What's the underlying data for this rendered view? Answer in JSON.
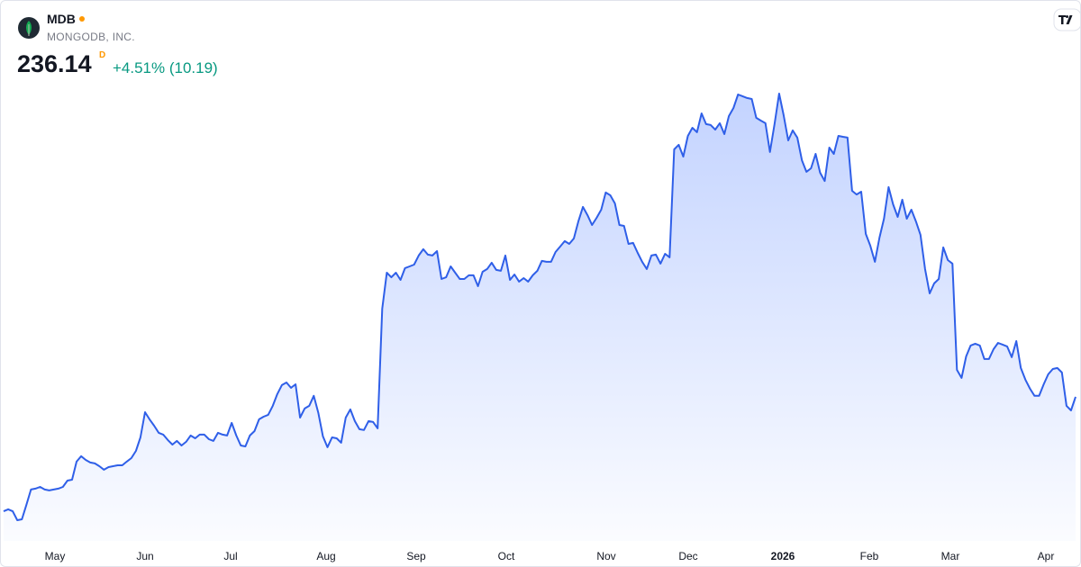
{
  "header": {
    "symbol": "MDB",
    "company": "MONGODB, INC.",
    "price": "236.14",
    "interval": "D",
    "change": "+4.51% (10.19)"
  },
  "chart_data": {
    "type": "area",
    "color": "#2f5fe8",
    "x_labels": [
      "May",
      "Jun",
      "Jul",
      "Aug",
      "Sep",
      "Oct",
      "Nov",
      "Dec",
      "2026",
      "Feb",
      "Mar",
      "Apr"
    ],
    "values": [
      158.2,
      159.5,
      158.2,
      152.1,
      152.7,
      162.6,
      173.0,
      173.6,
      174.8,
      173.0,
      172.4,
      173.0,
      173.6,
      174.8,
      179.1,
      179.7,
      192.0,
      195.7,
      193.2,
      191.4,
      190.8,
      188.9,
      186.5,
      188.3,
      188.9,
      189.5,
      189.5,
      192.0,
      194.4,
      199.3,
      208.5,
      225.7,
      220.8,
      216.5,
      211.6,
      210.4,
      206.7,
      203.6,
      206.1,
      203.0,
      205.5,
      209.8,
      207.9,
      210.4,
      210.4,
      207.3,
      206.1,
      211.6,
      210.4,
      209.8,
      218.4,
      209.8,
      203.0,
      202.4,
      209.8,
      212.8,
      220.8,
      222.6,
      223.9,
      230.0,
      238.0,
      244.1,
      245.9,
      242.3,
      244.7,
      222.0,
      228.2,
      230.0,
      236.8,
      225.1,
      209.2,
      201.8,
      208.5,
      207.9,
      204.9,
      222.0,
      227.6,
      219.6,
      214.1,
      213.5,
      219.6,
      219.0,
      214.7,
      296.2,
      320.7,
      317.6,
      320.7,
      315.8,
      323.8,
      325.0,
      326.2,
      332.4,
      336.7,
      333.0,
      332.4,
      335.4,
      316.4,
      317.6,
      325.0,
      320.7,
      316.4,
      316.4,
      318.9,
      318.9,
      311.5,
      321.3,
      323.2,
      327.5,
      322.6,
      322.0,
      332.4,
      315.8,
      319.5,
      314.6,
      317.0,
      314.6,
      318.9,
      322.0,
      328.7,
      328.1,
      328.1,
      334.8,
      338.5,
      342.2,
      340.3,
      344.0,
      355.6,
      365.5,
      359.9,
      353.2,
      358.1,
      363.6,
      375.3,
      373.4,
      367.9,
      353.2,
      352.6,
      340.3,
      341.0,
      334.2,
      328.1,
      323.2,
      332.4,
      333.0,
      326.9,
      333.6,
      331.2,
      404.7,
      407.8,
      399.8,
      413.9,
      419.4,
      416.4,
      429.2,
      421.9,
      421.3,
      418.2,
      422.5,
      415.1,
      427.4,
      432.9,
      442.1,
      440.9,
      439.7,
      439.0,
      426.2,
      424.3,
      422.5,
      402.9,
      421.9,
      442.7,
      428.0,
      410.8,
      417.6,
      412.7,
      397.3,
      389.4,
      391.8,
      401.6,
      388.8,
      383.2,
      405.9,
      401.6,
      413.9,
      413.3,
      412.7,
      376.5,
      374.0,
      375.9,
      347.1,
      339.1,
      328.1,
      344.6,
      357.5,
      379.0,
      367.3,
      358.7,
      370.4,
      357.5,
      363.6,
      355.6,
      346.5,
      323.2,
      306.6,
      313.4,
      316.4,
      337.9,
      329.3,
      326.9,
      254.5,
      249.0,
      263.7,
      271.1,
      272.3,
      271.1,
      261.9,
      261.9,
      268.6,
      272.9,
      271.7,
      270.5,
      263.1,
      274.1,
      255.8,
      247.8,
      241.7,
      236.8,
      236.8,
      244.7,
      251.5,
      255.1,
      255.8,
      252.7,
      230.0,
      226.9,
      236.14
    ]
  }
}
